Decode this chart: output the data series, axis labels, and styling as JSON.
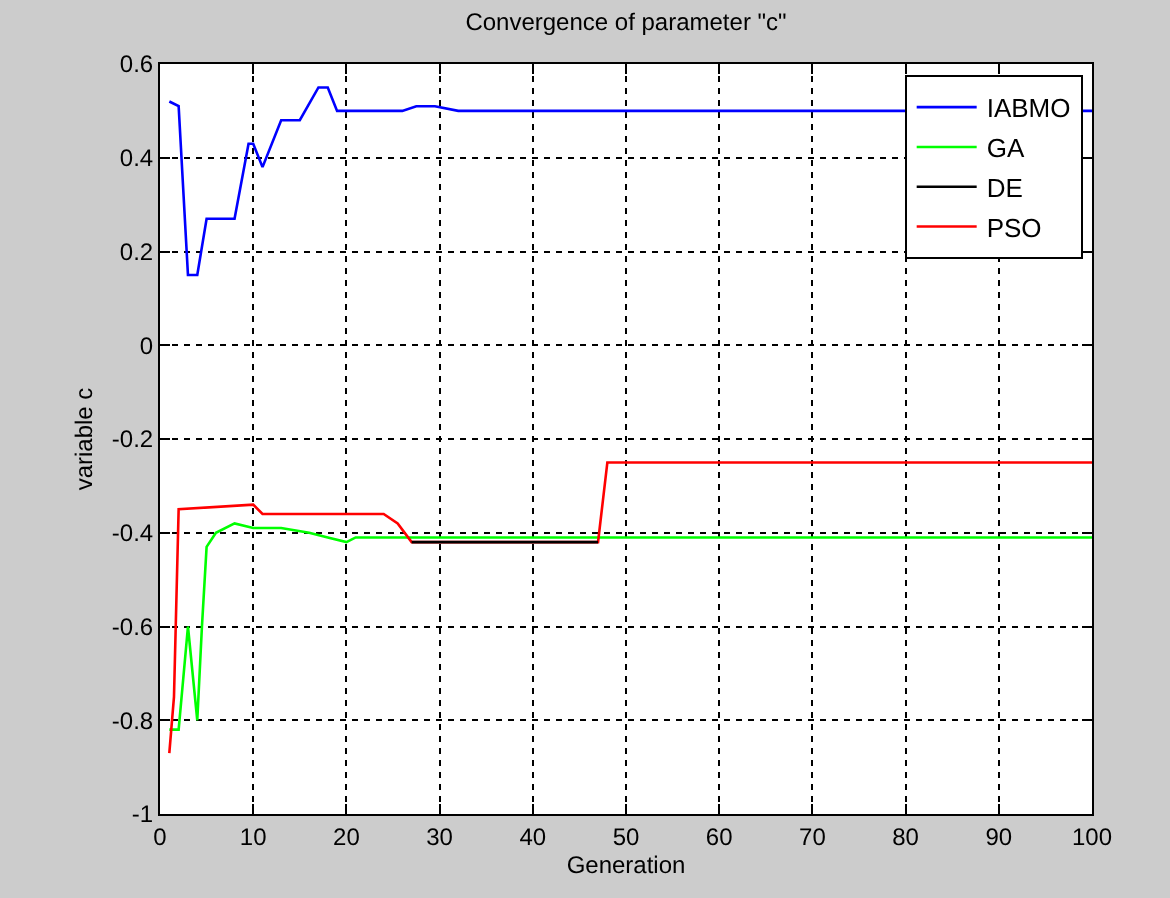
{
  "chart_data": {
    "type": "line",
    "title": "Convergence of parameter \"c\"",
    "xlabel": "Generation",
    "ylabel": "variable c",
    "xlim": [
      0,
      100
    ],
    "xticks": [
      0,
      10,
      20,
      30,
      40,
      50,
      60,
      70,
      80,
      90,
      100
    ],
    "ylim": [
      -1,
      0.6
    ],
    "yticks": [
      -1,
      -0.8,
      -0.6,
      -0.4,
      -0.2,
      0,
      0.2,
      0.4,
      0.6
    ],
    "grid": true,
    "legend": "top right",
    "line_style": "solid",
    "marker": "none",
    "series": [
      {
        "name": "IABMO",
        "color": "#0000ff",
        "x": [
          1,
          2,
          3,
          4,
          5,
          8,
          9.5,
          10,
          11,
          13,
          15,
          17,
          18,
          19,
          26,
          27.5,
          29.5,
          32,
          100
        ],
        "values": [
          0.52,
          0.51,
          0.15,
          0.15,
          0.27,
          0.27,
          0.43,
          0.43,
          0.38,
          0.48,
          0.48,
          0.55,
          0.55,
          0.5,
          0.5,
          0.51,
          0.51,
          0.5,
          0.5
        ]
      },
      {
        "name": "GA",
        "color": "#00ff00",
        "x": [
          1,
          2,
          3,
          4,
          4.5,
          5,
          6,
          8,
          10,
          13,
          16,
          18,
          20,
          21,
          100
        ],
        "values": [
          -0.82,
          -0.82,
          -0.6,
          -0.8,
          -0.6,
          -0.43,
          -0.4,
          -0.38,
          -0.39,
          -0.39,
          -0.4,
          -0.41,
          -0.42,
          -0.41,
          -0.41
        ]
      },
      {
        "name": "DE",
        "color": "#000000",
        "x": [
          27,
          47
        ],
        "values": [
          -0.42,
          -0.42
        ]
      },
      {
        "name": "PSO",
        "color": "#ff0000",
        "x": [
          1,
          1.5,
          2,
          10,
          11,
          24,
          25.5,
          27,
          47,
          48,
          100
        ],
        "values": [
          -0.87,
          -0.75,
          -0.35,
          -0.34,
          -0.36,
          -0.36,
          -0.38,
          -0.42,
          -0.42,
          -0.25,
          -0.25
        ]
      }
    ]
  }
}
